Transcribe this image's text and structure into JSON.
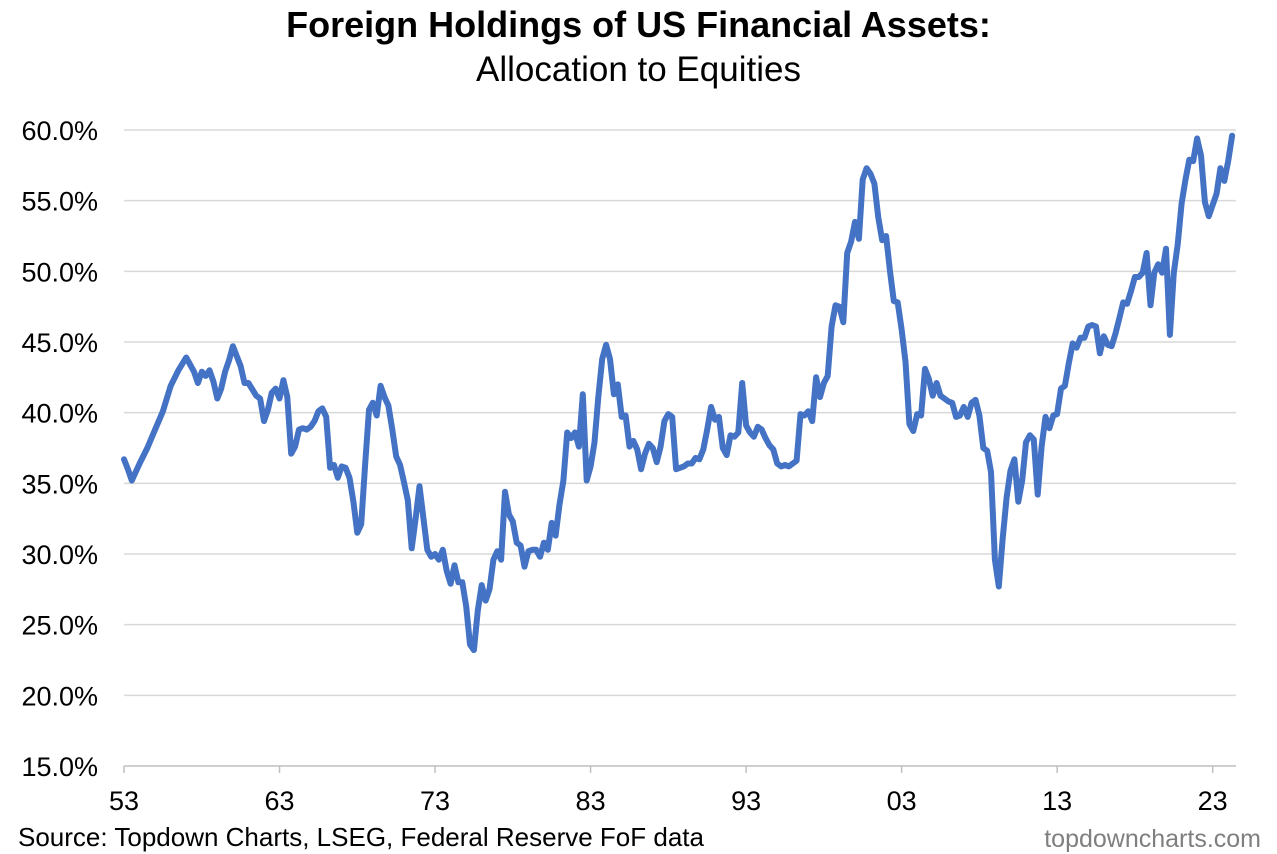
{
  "chart_data": {
    "type": "line",
    "title": "Foreign Holdings of US Financial Assets:",
    "subtitle": "Allocation to Equities",
    "xlabel": "",
    "ylabel": "",
    "ylim": [
      15,
      60
    ],
    "xlim": [
      1953,
      2024.5
    ],
    "y_ticks": [
      15,
      20,
      25,
      30,
      35,
      40,
      45,
      50,
      55,
      60
    ],
    "y_tick_labels": [
      "15.0%",
      "20.0%",
      "25.0%",
      "30.0%",
      "35.0%",
      "40.0%",
      "45.0%",
      "50.0%",
      "55.0%",
      "60.0%"
    ],
    "x_ticks": [
      1953,
      1963,
      1973,
      1983,
      1993,
      2003,
      2013,
      2023
    ],
    "x_tick_labels": [
      "53",
      "63",
      "73",
      "83",
      "93",
      "03",
      "13",
      "23"
    ],
    "grid": "horizontal",
    "line_color": "#4472C4",
    "series": [
      {
        "name": "",
        "x": [
          1953.0,
          1953.25,
          1953.5,
          1954.0,
          1954.5,
          1955.0,
          1955.5,
          1956.0,
          1956.5,
          1957.0,
          1957.5,
          1957.75,
          1958.0,
          1958.25,
          1958.5,
          1958.75,
          1959.0,
          1959.25,
          1959.5,
          1959.75,
          1960.0,
          1960.5,
          1960.75,
          1961.0,
          1961.5,
          1961.75,
          1962.0,
          1962.25,
          1962.5,
          1962.75,
          1963.0,
          1963.25,
          1963.5,
          1963.75,
          1964.0,
          1964.25,
          1964.5,
          1964.75,
          1965.0,
          1965.25,
          1965.5,
          1965.75,
          1966.0,
          1966.25,
          1966.5,
          1966.75,
          1967.0,
          1967.25,
          1967.5,
          1967.75,
          1968.0,
          1968.25,
          1968.5,
          1968.75,
          1969.0,
          1969.25,
          1969.5,
          1969.75,
          1970.0,
          1970.25,
          1970.5,
          1970.75,
          1971.0,
          1971.25,
          1971.5,
          1971.75,
          1972.0,
          1972.5,
          1972.75,
          1973.0,
          1973.25,
          1973.5,
          1973.75,
          1974.0,
          1974.25,
          1974.5,
          1974.75,
          1975.0,
          1975.25,
          1975.5,
          1975.75,
          1976.0,
          1976.25,
          1976.5,
          1976.75,
          1977.0,
          1977.25,
          1977.5,
          1977.75,
          1978.0,
          1978.25,
          1978.5,
          1978.75,
          1979.0,
          1979.25,
          1979.5,
          1979.75,
          1980.0,
          1980.25,
          1980.5,
          1980.75,
          1981.0,
          1981.25,
          1981.5,
          1981.75,
          1982.0,
          1982.25,
          1982.5,
          1982.75,
          1983.0,
          1983.25,
          1983.5,
          1983.75,
          1984.0,
          1984.25,
          1984.5,
          1984.75,
          1985.0,
          1985.25,
          1985.5,
          1985.75,
          1986.0,
          1986.25,
          1986.5,
          1986.75,
          1987.0,
          1987.25,
          1987.5,
          1987.75,
          1988.0,
          1988.25,
          1988.5,
          1988.75,
          1989.0,
          1989.25,
          1989.5,
          1989.75,
          1990.0,
          1990.25,
          1990.5,
          1990.75,
          1991.0,
          1991.25,
          1991.5,
          1991.75,
          1992.0,
          1992.25,
          1992.5,
          1992.75,
          1993.0,
          1993.25,
          1993.5,
          1993.75,
          1994.0,
          1994.25,
          1994.5,
          1994.75,
          1995.0,
          1995.25,
          1995.5,
          1995.75,
          1996.0,
          1996.25,
          1996.5,
          1996.75,
          1997.0,
          1997.25,
          1997.5,
          1997.75,
          1998.0,
          1998.25,
          1998.5,
          1998.75,
          1999.0,
          1999.25,
          1999.5,
          1999.75,
          2000.0,
          2000.25,
          2000.5,
          2000.75,
          2001.0,
          2001.25,
          2001.5,
          2001.75,
          2002.0,
          2002.25,
          2002.5,
          2002.75,
          2003.0,
          2003.25,
          2003.5,
          2003.75,
          2004.0,
          2004.25,
          2004.5,
          2004.75,
          2005.0,
          2005.25,
          2005.5,
          2005.75,
          2006.0,
          2006.25,
          2006.5,
          2006.75,
          2007.0,
          2007.25,
          2007.5,
          2007.75,
          2008.0,
          2008.25,
          2008.5,
          2008.75,
          2009.0,
          2009.25,
          2009.5,
          2009.75,
          2010.0,
          2010.25,
          2010.5,
          2010.75,
          2011.0,
          2011.25,
          2011.5,
          2011.75,
          2012.0,
          2012.25,
          2012.5,
          2012.75,
          2013.0,
          2013.25,
          2013.5,
          2013.75,
          2014.0,
          2014.25,
          2014.5,
          2014.75,
          2015.0,
          2015.25,
          2015.5,
          2015.75,
          2016.0,
          2016.25,
          2016.5,
          2016.75,
          2017.0,
          2017.25,
          2017.5,
          2017.75,
          2018.0,
          2018.25,
          2018.5,
          2018.75,
          2019.0,
          2019.25,
          2019.5,
          2019.75,
          2020.0,
          2020.25,
          2020.5,
          2020.75,
          2021.0,
          2021.25,
          2021.5,
          2021.75,
          2022.0,
          2022.25,
          2022.5,
          2022.75,
          2023.0,
          2023.25,
          2023.5,
          2023.75,
          2024.0,
          2024.25
        ],
        "y": [
          36.7,
          36.0,
          35.2,
          36.4,
          37.5,
          38.8,
          40.1,
          41.9,
          43.0,
          43.9,
          42.9,
          42.1,
          42.9,
          42.6,
          43.0,
          42.2,
          41.0,
          41.7,
          42.9,
          43.7,
          44.7,
          43.3,
          42.1,
          42.1,
          41.2,
          41.0,
          39.4,
          40.2,
          41.4,
          41.7,
          41.0,
          42.3,
          41.1,
          37.1,
          37.6,
          38.8,
          38.9,
          38.8,
          39.0,
          39.4,
          40.1,
          40.3,
          39.7,
          36.1,
          36.3,
          35.4,
          36.2,
          36.1,
          35.4,
          33.7,
          31.5,
          32.1,
          36.3,
          40.2,
          40.7,
          39.8,
          41.9,
          41.1,
          40.5,
          38.8,
          36.9,
          36.3,
          35.1,
          33.8,
          30.4,
          32.5,
          34.8,
          30.3,
          29.8,
          30.0,
          29.6,
          30.3,
          28.8,
          27.9,
          29.2,
          28.0,
          28.0,
          26.3,
          23.6,
          23.2,
          26.0,
          27.8,
          26.7,
          27.5,
          29.6,
          30.2,
          29.6,
          34.4,
          32.8,
          32.3,
          30.8,
          30.6,
          29.1,
          30.2,
          30.3,
          30.3,
          29.8,
          30.8,
          30.3,
          32.2,
          31.3,
          33.5,
          35.2,
          38.6,
          38.2,
          38.6,
          37.6,
          41.3,
          35.2,
          36.2,
          37.9,
          41.1,
          43.8,
          44.8,
          43.8,
          41.3,
          42.0,
          39.7,
          39.8,
          37.6,
          38.0,
          37.4,
          36.0,
          37.1,
          37.8,
          37.5,
          36.5,
          37.6,
          39.4,
          39.9,
          39.7,
          36.0,
          36.1,
          36.2,
          36.4,
          36.4,
          36.8,
          36.7,
          37.4,
          38.8,
          40.4,
          39.5,
          39.7,
          37.5,
          37.0,
          38.4,
          38.3,
          38.6,
          42.1,
          39.1,
          38.6,
          38.3,
          39.0,
          38.8,
          38.2,
          37.7,
          37.4,
          36.4,
          36.2,
          36.3,
          36.2,
          36.4,
          36.6,
          39.9,
          39.8,
          40.1,
          39.4,
          42.5,
          41.1,
          42.1,
          42.6,
          46.1,
          47.6,
          47.5,
          46.4,
          51.3,
          52.1,
          53.5,
          52.3,
          56.5,
          57.3,
          56.9,
          56.2,
          53.8,
          52.2,
          52.5,
          50.0,
          47.9,
          47.8,
          45.9,
          43.6,
          39.2,
          38.7,
          39.9,
          39.8,
          43.1,
          42.4,
          41.2,
          42.1,
          41.2,
          41.0,
          40.8,
          40.7,
          39.7,
          39.8,
          40.4,
          39.7,
          40.7,
          40.9,
          39.8,
          37.5,
          37.3,
          35.8,
          29.6,
          27.7,
          31.1,
          34.0,
          35.9,
          36.7,
          33.7,
          35.2,
          37.9,
          38.4,
          38.1,
          34.2,
          37.6,
          39.7,
          38.9,
          39.8,
          39.9,
          41.7,
          41.9,
          43.5,
          44.9,
          44.6,
          45.3,
          45.3,
          46.1,
          46.2,
          46.1,
          44.2,
          45.4,
          44.8,
          44.7,
          45.6,
          46.7,
          47.8,
          47.7,
          48.6,
          49.6,
          49.6,
          49.9,
          51.3,
          47.6,
          49.9,
          50.5,
          49.9,
          51.6,
          45.5,
          49.9,
          51.9,
          54.8,
          56.5,
          57.9,
          57.8,
          59.4,
          58.2,
          54.9,
          53.9,
          54.7,
          55.5,
          57.3,
          56.4,
          57.8,
          59.6
        ]
      }
    ],
    "source_text": "Source: Topdown Charts, LSEG, Federal Reserve FoF data",
    "brand_text": "topdowncharts.com"
  }
}
